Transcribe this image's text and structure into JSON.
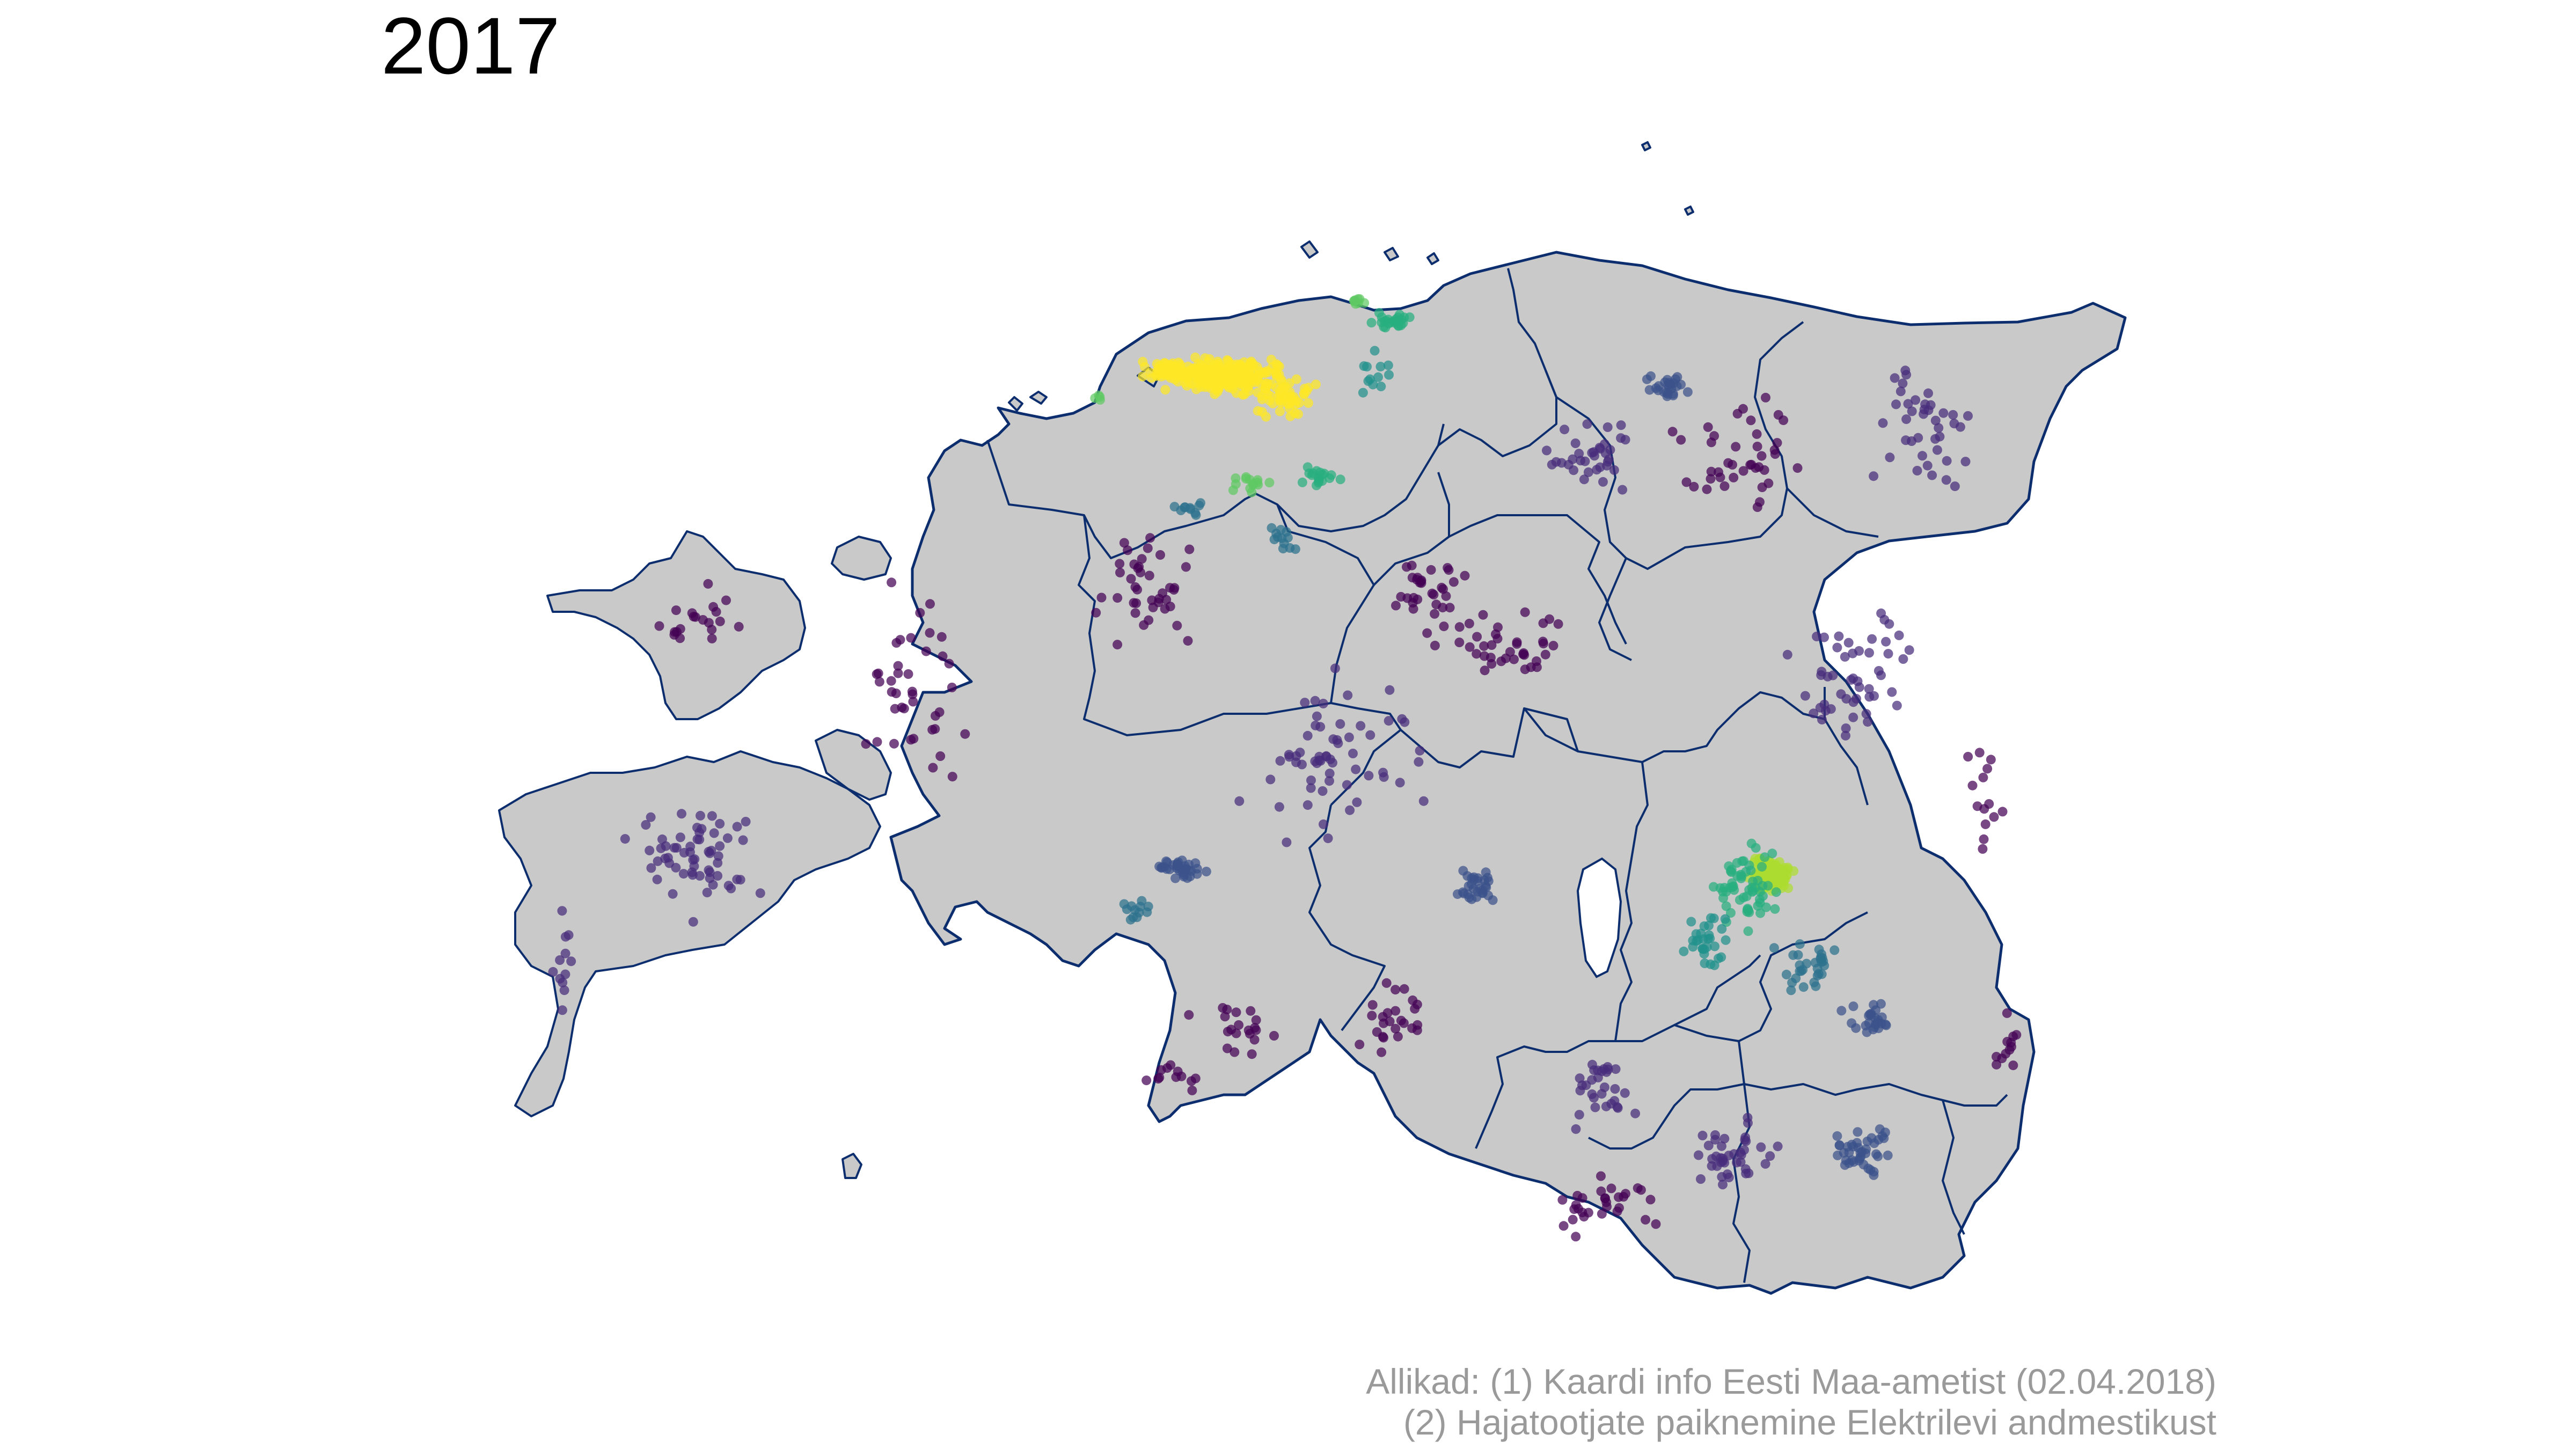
{
  "title": "2017",
  "caption": {
    "line1": "Allikad: (1) Kaardi info Eesti Maa-ametist (02.04.2018)",
    "line2": "(2) Hajatootjate paiknemine Elektrilevi andmestikust"
  },
  "colors": {
    "land": "#c9c9c9",
    "border": "#0d2e6e",
    "background": "#ffffff",
    "viridis_low": "#440154",
    "viridis_high": "#fde725"
  },
  "map": {
    "country": "Estonia",
    "point_color_scale": "viridis (point density)",
    "legend": "none"
  }
}
